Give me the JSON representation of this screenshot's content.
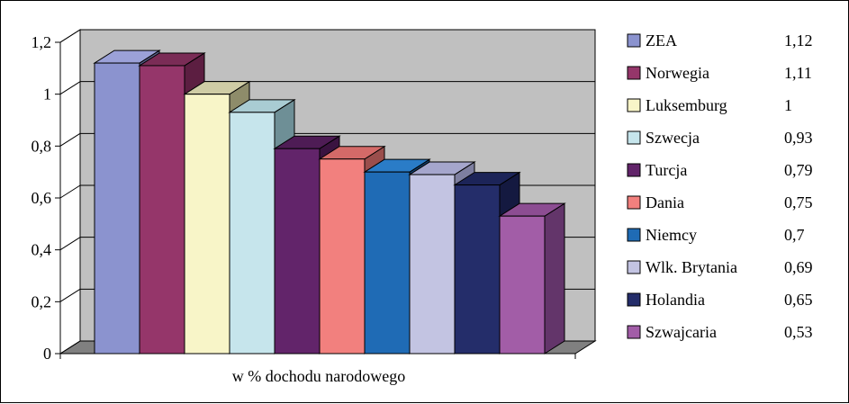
{
  "chart_data": {
    "type": "bar",
    "xlabel": "w % dochodu narodowego",
    "ylim": [
      0,
      1.2
    ],
    "yticks": [
      "0",
      "0,2",
      "0,4",
      "0,6",
      "0,8",
      "1",
      "1,2"
    ],
    "series": [
      {
        "name": "ZEA",
        "value": 1.12,
        "value_label": "1,12",
        "color": "#8B93CF",
        "side": "#5A5F8A",
        "top": "#9BA1D8"
      },
      {
        "name": "Norwegia",
        "value": 1.11,
        "value_label": "1,11",
        "color": "#95366A",
        "side": "#5C1E41",
        "top": "#7A2C56"
      },
      {
        "name": "Luksemburg",
        "value": 1.0,
        "value_label": "1",
        "color": "#F8F5C8",
        "side": "#8E8C6A",
        "top": "#CFCCA5"
      },
      {
        "name": "Szwecja",
        "value": 0.93,
        "value_label": "0,93",
        "color": "#C6E5EC",
        "side": "#6E8F96",
        "top": "#A9CCD3"
      },
      {
        "name": "Turcja",
        "value": 0.79,
        "value_label": "0,79",
        "color": "#62246A",
        "side": "#3A1340",
        "top": "#4E1C55"
      },
      {
        "name": "Dania",
        "value": 0.75,
        "value_label": "0,75",
        "color": "#F2807E",
        "side": "#9A4E4C",
        "top": "#D46A68"
      },
      {
        "name": "Niemcy",
        "value": 0.7,
        "value_label": "0,7",
        "color": "#1F6BB5",
        "side": "#123F6C",
        "top": "#2A7CC7"
      },
      {
        "name": "Wlk. Brytania",
        "value": 0.69,
        "value_label": "0,69",
        "color": "#C3C4E2",
        "side": "#7E7FA0",
        "top": "#A5A6CC"
      },
      {
        "name": "Holandia",
        "value": 0.65,
        "value_label": "0,65",
        "color": "#242D6A",
        "side": "#141940",
        "top": "#1C2458"
      },
      {
        "name": "Szwajcaria",
        "value": 0.53,
        "value_label": "0,53",
        "color": "#A25DA7",
        "side": "#63356A",
        "top": "#8C4D92"
      }
    ],
    "grid": true,
    "legend_position": "right"
  }
}
